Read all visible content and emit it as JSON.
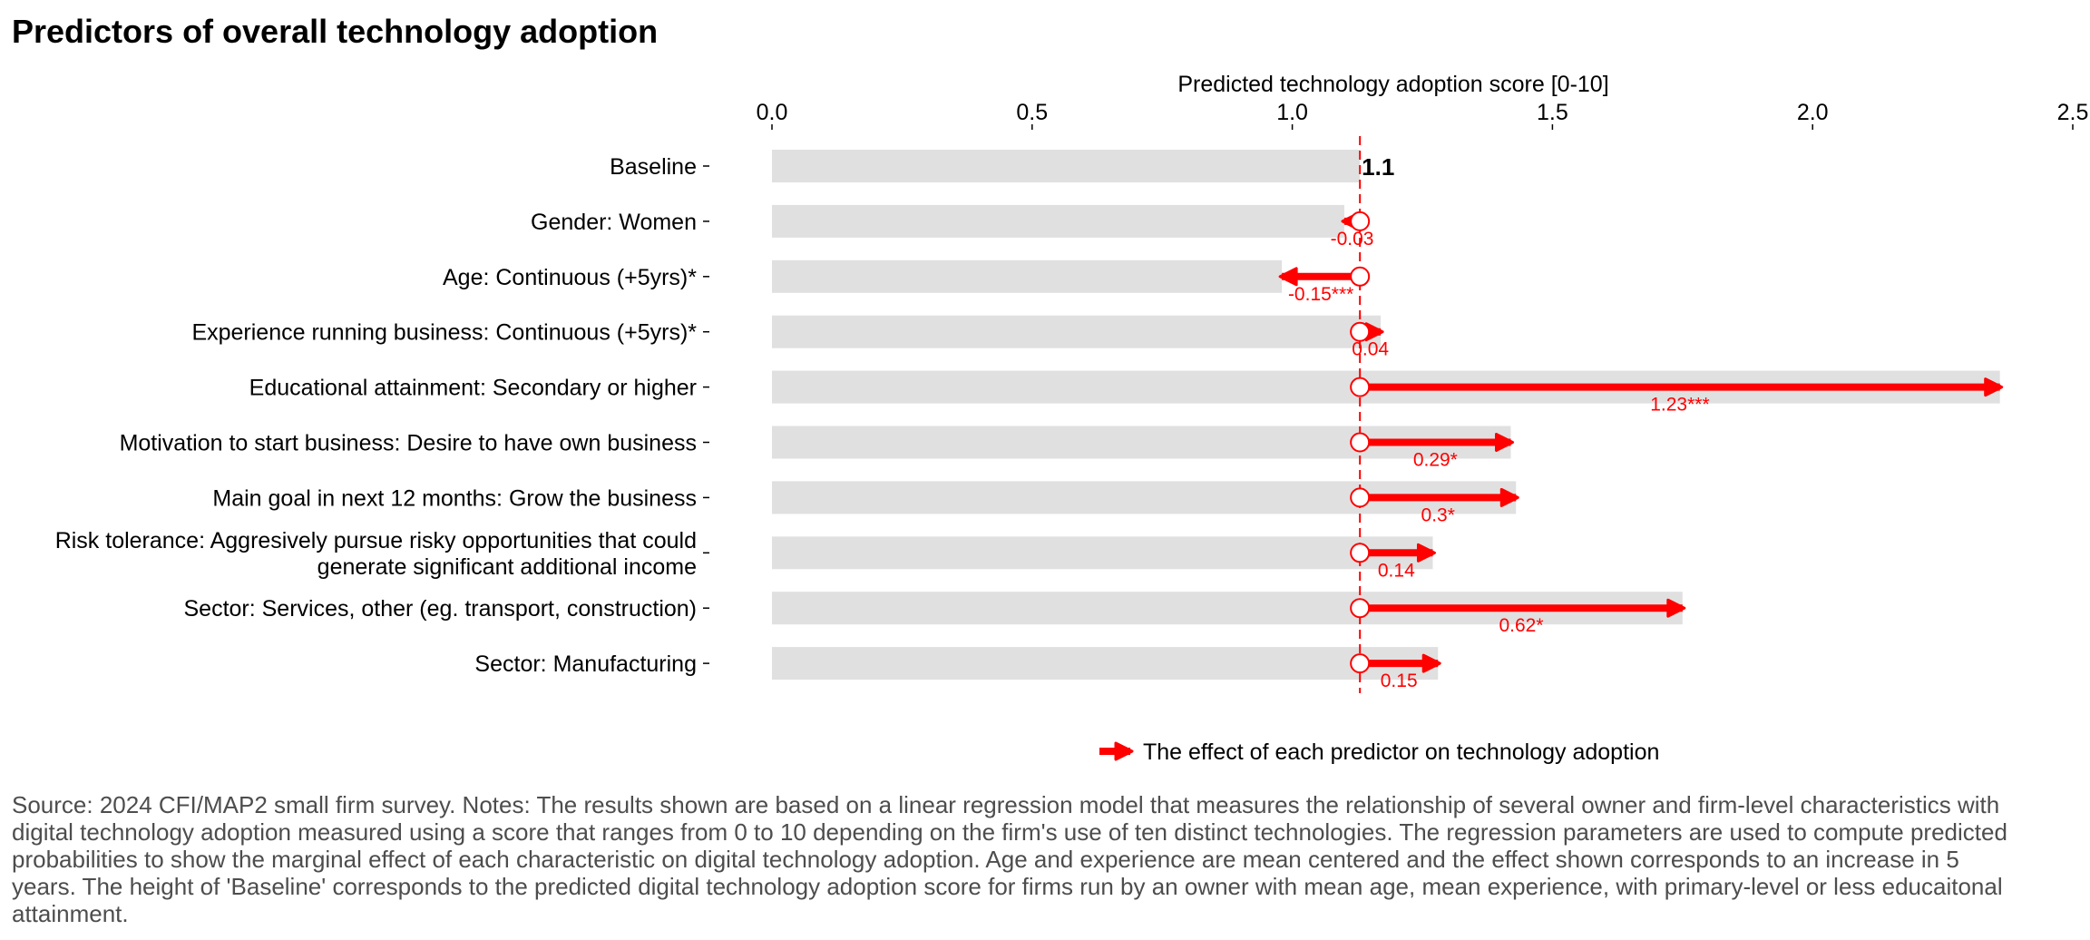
{
  "title": "Predictors of overall technology adoption",
  "source_note": "Source: 2024 CFI/MAP2 small firm survey. Notes: The results shown are based on a linear regression model that measures the relationship of several owner and firm-level characteristics with digital technology adoption measured using a score that ranges from 0 to 10 depending on the firm's use of ten distinct technologies. The regression parameters are used to compute predicted probabilities to show the marginal effect of each characteristic on digital technology adoption. Age and experience are mean centered and the effect shown corresponds to an increase in 5 years. The height of 'Baseline' corresponds to the predicted digital technology adoption score for firms run by an owner with mean age, mean experience, with primary-level or less educaitonal attainment.",
  "colors": {
    "bar": "#e0e0e0",
    "effect": "#ff0000",
    "text": "#000000",
    "note": "#4d4d4d"
  },
  "chart_data": {
    "type": "bar",
    "xlabel": "Predicted technology adoption score [0-10]",
    "xlim": [
      0,
      2.5
    ],
    "xticks": [
      0.0,
      0.5,
      1.0,
      1.5,
      2.0,
      2.5
    ],
    "xtick_labels": [
      "0.0",
      "0.5",
      "1.0",
      "1.5",
      "2.0",
      "2.5"
    ],
    "baseline": 1.13,
    "baseline_label": "1.1",
    "legend": {
      "label": "The effect of each predictor on technology adoption",
      "position": "bottom"
    },
    "categories": [
      "Baseline",
      "Gender: Women",
      "Age: Continuous (+5yrs)*",
      "Experience running business: Continuous (+5yrs)*",
      "Educational attainment: Secondary or higher",
      "Motivation to start business: Desire to have own business",
      "Main goal in next 12 months: Grow the business",
      "Risk tolerance: Aggresively pursue risky opportunities that could\ngenerate significant additional income",
      "Sector: Services, other (eg. transport, construction)",
      "Sector: Manufacturing"
    ],
    "effects": [
      null,
      -0.03,
      -0.15,
      0.04,
      1.23,
      0.29,
      0.3,
      0.14,
      0.62,
      0.15
    ],
    "effect_labels": [
      "",
      "-0.03",
      "-0.15***",
      "0.04",
      "1.23***",
      "0.29*",
      "0.3*",
      "0.14",
      "0.62*",
      "0.15"
    ]
  }
}
